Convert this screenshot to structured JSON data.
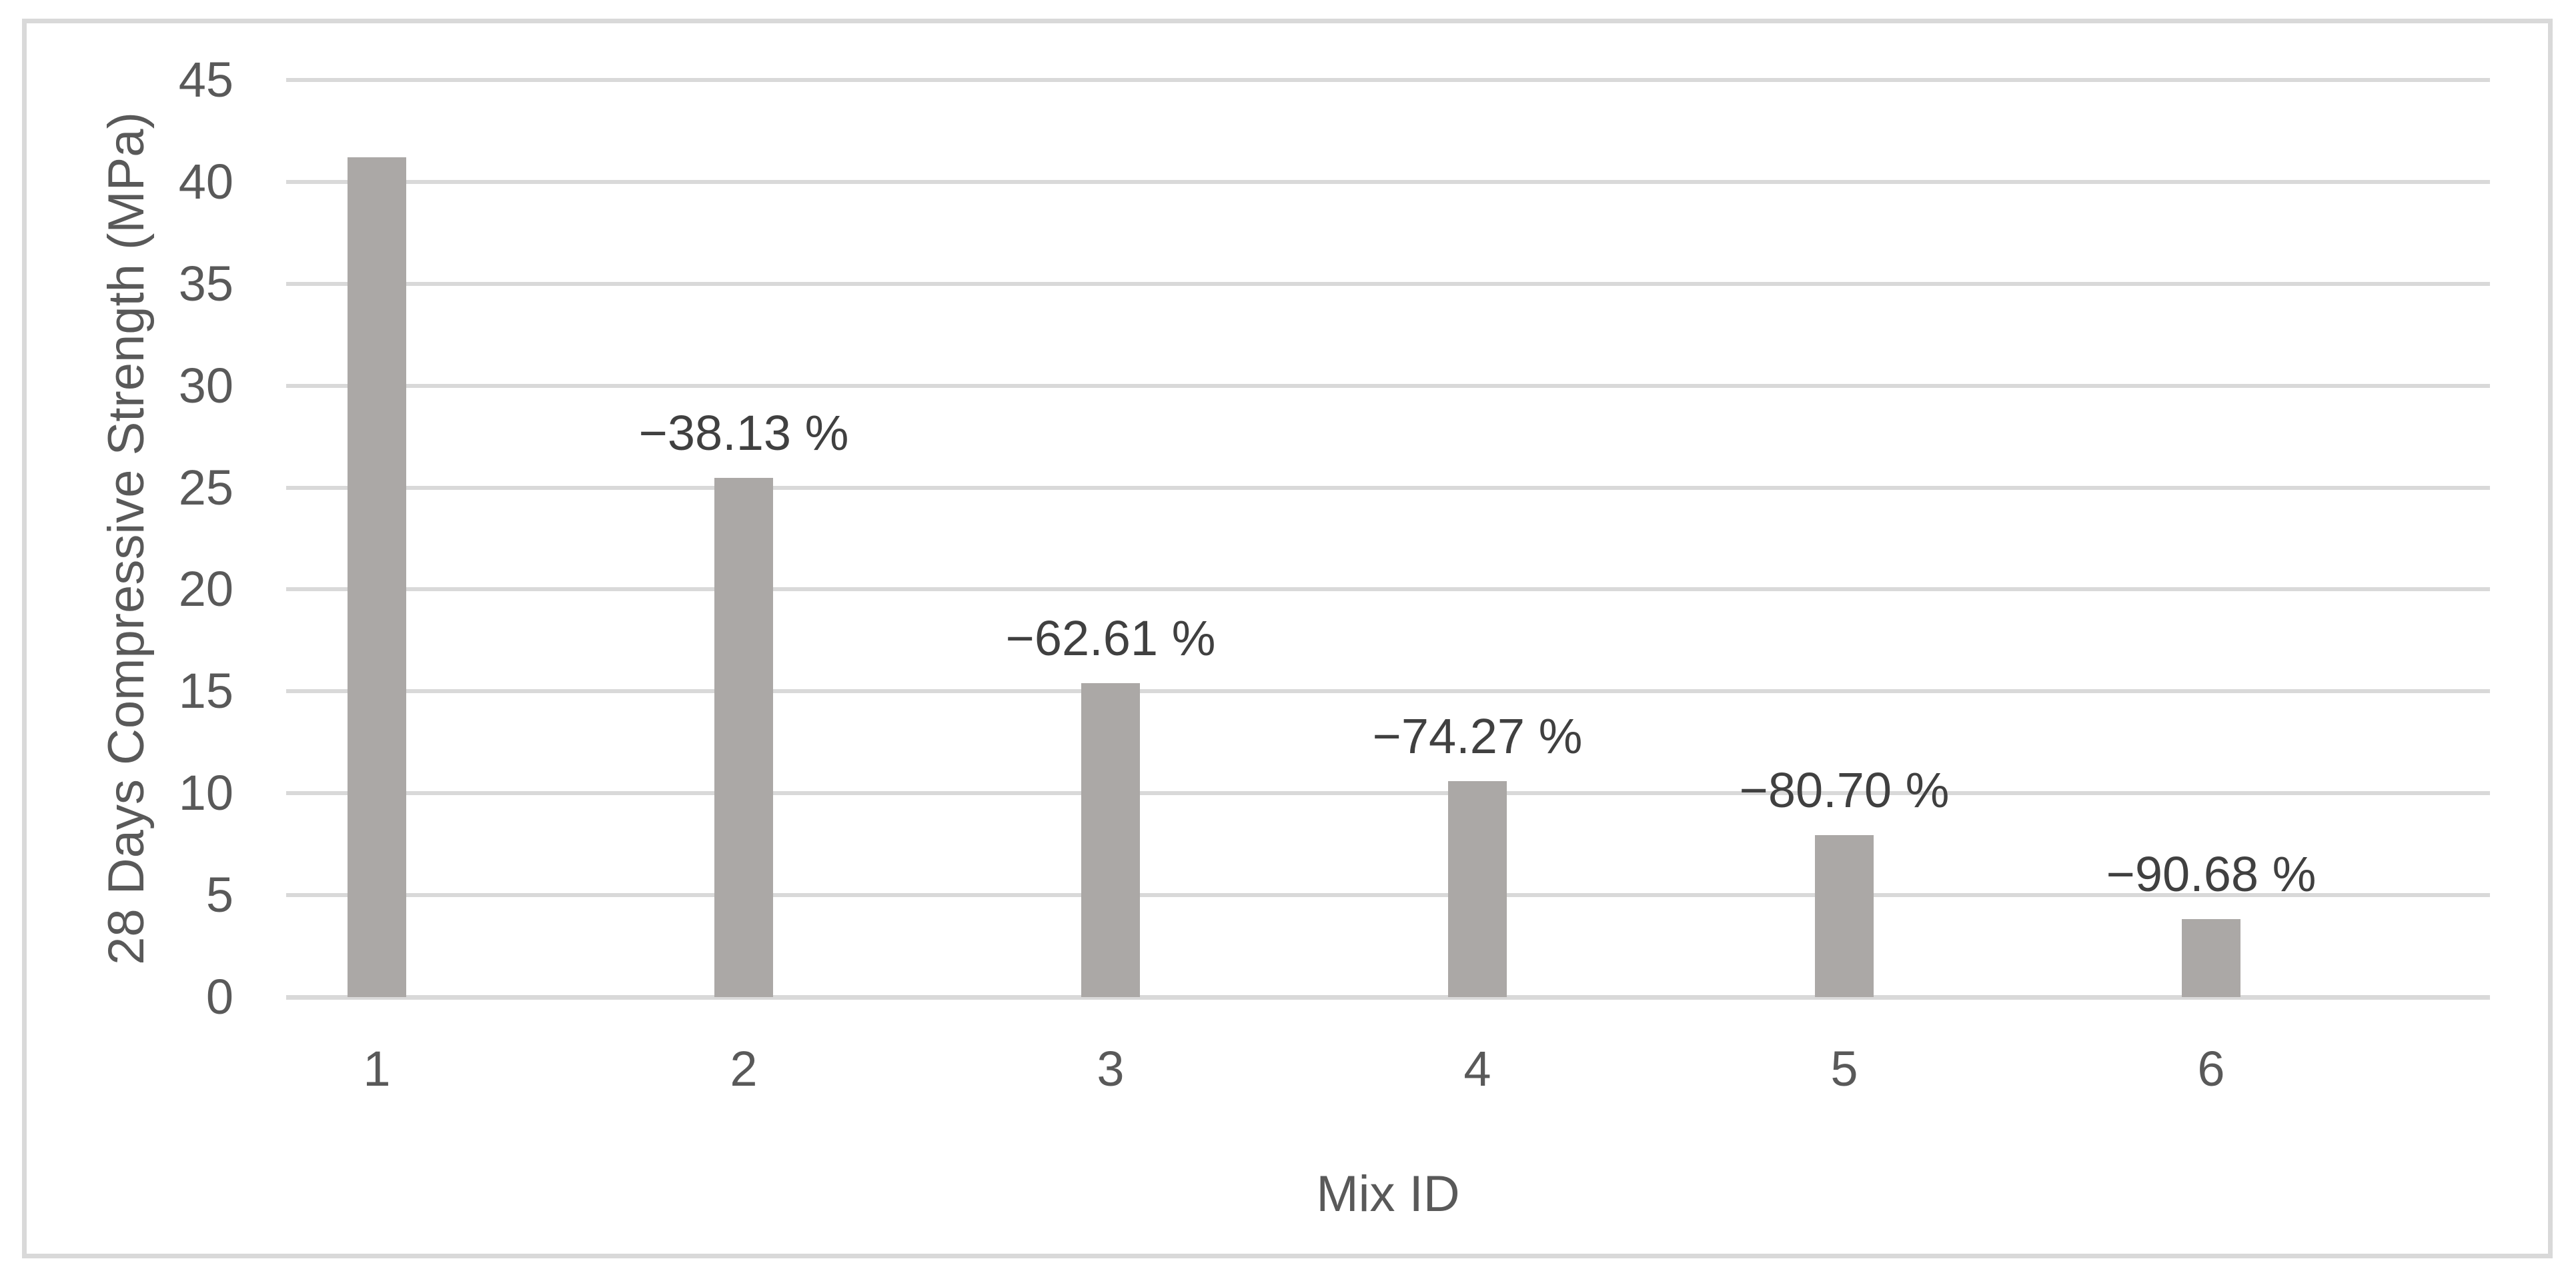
{
  "chart_data": {
    "type": "bar",
    "title": "",
    "xlabel": "Mix ID",
    "ylabel": "28 Days Compressive Strength (MPa)",
    "categories": [
      "1",
      "2",
      "3",
      "4",
      "5",
      "6"
    ],
    "series": [
      {
        "name": "28 Days Compressive Strength",
        "values": [
          41.2,
          25.49,
          15.41,
          10.6,
          7.95,
          3.84
        ]
      }
    ],
    "data_labels": [
      "",
      "−38.13 %",
      "−62.61 %",
      "−74.27 %",
      "−80.70 %",
      "−90.68 %"
    ],
    "data_labels_meaning": "percent change vs Mix 1",
    "ylim": [
      0,
      45
    ],
    "yticks": [
      0,
      5,
      10,
      15,
      20,
      25,
      30,
      35,
      40,
      45
    ],
    "grid": true,
    "legend": false,
    "colors": {
      "bar": "#aba8a6",
      "gridline": "#d9d9d9",
      "axis_line": "#d9d9d9",
      "figure_border": "#d9d9d9",
      "axis_text": "#595959",
      "data_label_text": "#404040",
      "background": "#ffffff"
    }
  }
}
